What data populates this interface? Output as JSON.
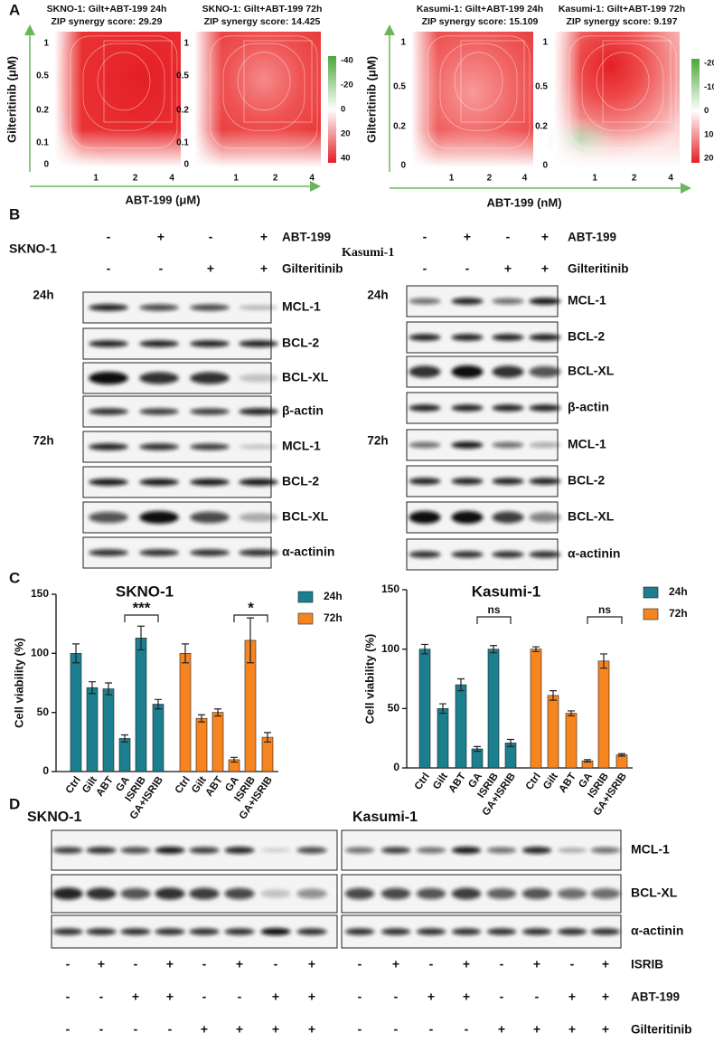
{
  "panel_labels": [
    "A",
    "B",
    "C",
    "D"
  ],
  "panel_a": {
    "heatmaps": [
      {
        "title": "SKNO-1: Gilt+ABT-199 24h",
        "score": "ZIP synergy score: 29.29",
        "yticks": [
          1,
          0.5,
          0.2,
          0.1,
          0
        ],
        "xticks": [
          1,
          2,
          4
        ]
      },
      {
        "title": "SKNO-1: Gilt+ABT-199 72h",
        "score": "ZIP synergy score: 14.425",
        "yticks": [
          1,
          0.5,
          0.2,
          0.1,
          0
        ],
        "xticks": [
          1,
          2,
          4
        ]
      },
      {
        "title": "Kasumi-1: Gilt+ABT-199 24h",
        "score": "ZIP synergy score: 15.109",
        "yticks": [
          1,
          0.5,
          0.2,
          0
        ],
        "xticks": [
          1,
          2,
          4
        ]
      },
      {
        "title": "Kasumi-1: Gilt+ABT-199 72h",
        "score": "ZIP synergy score: 9.197",
        "yticks": [
          1,
          0.5,
          0.2,
          0
        ],
        "xticks": [
          1,
          2,
          4
        ]
      }
    ],
    "colorbars": [
      [
        -40,
        -20,
        0,
        20,
        40
      ],
      [
        -20,
        -10,
        0,
        10,
        20
      ]
    ],
    "y_label": "Gilteritinib (μM)",
    "x_labels": [
      "ABT-199 (μM)",
      "ABT-199 (nM)"
    ]
  },
  "panel_b": [
    {
      "cell_line": "SKNO-1",
      "conditions": [
        {
          "label": "ABT-199",
          "signs": [
            "-",
            "+",
            "-",
            "+"
          ]
        },
        {
          "label": "Gilteritinib",
          "signs": [
            "-",
            "-",
            "+",
            "+"
          ]
        }
      ],
      "timepoints": [
        "24h",
        "72h"
      ],
      "proteins": [
        "MCL-1",
        "BCL-2",
        "BCL-XL",
        "β-actin",
        "MCL-1",
        "BCL-2",
        "BCL-XL",
        "α-actinin"
      ]
    },
    {
      "cell_line": "Kasumi-1",
      "conditions": [
        {
          "label": "ABT-199",
          "signs": [
            "-",
            "+",
            "-",
            "+"
          ]
        },
        {
          "label": "Gilteritinib",
          "signs": [
            "-",
            "-",
            "+",
            "+"
          ]
        }
      ],
      "timepoints": [
        "24h",
        "72h"
      ],
      "proteins": [
        "MCL-1",
        "BCL-2",
        "BCL-XL",
        "β-actin",
        "MCL-1",
        "BCL-2",
        "BCL-XL",
        "α-actinin"
      ]
    }
  ],
  "chart_data": [
    {
      "type": "bar",
      "title": "SKNO-1",
      "y_label": "Cell viability (%)",
      "categories": [
        "Ctrl",
        "Gilt",
        "ABT",
        "GA",
        "ISRIB",
        "GA+ISRIB"
      ],
      "series": [
        {
          "name": "24h",
          "color": "#1b7f8e",
          "values": [
            100,
            71,
            70,
            28,
            113,
            57
          ],
          "errors": [
            8,
            5,
            5,
            3,
            10,
            4
          ]
        },
        {
          "name": "72h",
          "color": "#f7851f",
          "values": [
            100,
            45,
            50,
            10,
            111,
            29
          ],
          "errors": [
            8,
            3,
            3,
            2,
            19,
            4
          ]
        }
      ],
      "ylim": [
        0,
        150
      ],
      "yticks": [
        0,
        50,
        100,
        150
      ],
      "annotations": [
        "***",
        "*"
      ]
    },
    {
      "type": "bar",
      "title": "Kasumi-1",
      "y_label": "Cell viability (%)",
      "categories": [
        "Ctrl",
        "Gilt",
        "ABT",
        "GA",
        "ISRIB",
        "GA+ISRIB"
      ],
      "series": [
        {
          "name": "24h",
          "color": "#1b7f8e",
          "values": [
            100,
            50,
            70,
            16,
            100,
            21
          ],
          "errors": [
            4,
            4,
            5,
            2,
            3,
            3
          ]
        },
        {
          "name": "72h",
          "color": "#f7851f",
          "values": [
            100,
            61,
            46,
            6,
            90,
            11
          ],
          "errors": [
            2,
            4,
            2,
            1,
            6,
            1
          ]
        }
      ],
      "ylim": [
        0,
        150
      ],
      "yticks": [
        0,
        50,
        100,
        150
      ],
      "annotations": [
        "ns",
        "ns"
      ]
    }
  ],
  "panel_d": {
    "cell_lines": [
      "SKNO-1",
      "Kasumi-1"
    ],
    "proteins": [
      "MCL-1",
      "BCL-XL",
      "α-actinin"
    ],
    "conditions": [
      {
        "label": "ISRIB",
        "signs": [
          "-",
          "+",
          "-",
          "+",
          "-",
          "+",
          "-",
          "+",
          "-",
          "+",
          "-",
          "+",
          "-",
          "+",
          "-",
          "+"
        ]
      },
      {
        "label": "ABT-199",
        "signs": [
          "-",
          "-",
          "+",
          "+",
          "-",
          "-",
          "+",
          "+",
          "-",
          "-",
          "+",
          "+",
          "-",
          "-",
          "+",
          "+"
        ]
      },
      {
        "label": "Gilteritinib",
        "signs": [
          "-",
          "-",
          "-",
          "-",
          "+",
          "+",
          "+",
          "+",
          "-",
          "-",
          "-",
          "-",
          "+",
          "+",
          "+",
          "+"
        ]
      }
    ]
  }
}
